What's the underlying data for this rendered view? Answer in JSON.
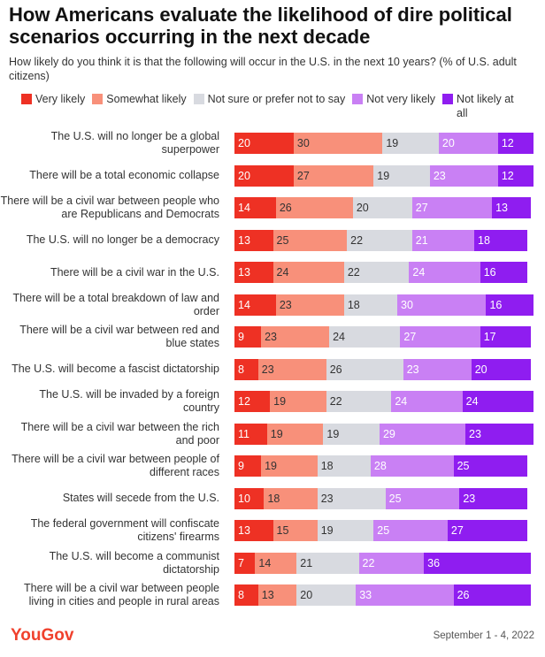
{
  "chart_data": {
    "type": "stacked-bar-horizontal",
    "title": "How Americans evaluate the likelihood of dire political scenarios occurring in the next decade",
    "subtitle": "How likely do you think it is that the following will occur in the U.S. in the next 10 years? (% of U.S. adult citizens)",
    "source": "YouGov",
    "date": "September 1 - 4, 2022",
    "categories": [
      "The U.S. will no longer be a global superpower",
      "There will be a total economic collapse",
      "There will be a civil war between people who are Republicans and Democrats",
      "The U.S. will no longer be a democracy",
      "There will be a civil war in the U.S.",
      "There will be a total breakdown of law and order",
      "There will be a civil war between red and blue states",
      "The U.S. will become a fascist dictatorship",
      "The U.S. will be invaded by a foreign country",
      "There will be a civil war between the rich and poor",
      "There will be a civil war between people of different races",
      "States will secede from the U.S.",
      "The federal government will confiscate citizens' firearms",
      "The U.S. will become a communist dictatorship",
      "There will be a civil war between people living in cities and people in rural areas"
    ],
    "series": [
      {
        "name": "Very likely",
        "color": "#ee3124",
        "text_color": "#ffffff",
        "values": [
          20,
          20,
          14,
          13,
          13,
          14,
          9,
          8,
          12,
          11,
          9,
          10,
          13,
          7,
          8
        ]
      },
      {
        "name": "Somewhat likely",
        "color": "#f8907a",
        "text_color": "#333333",
        "values": [
          30,
          27,
          26,
          25,
          24,
          23,
          23,
          23,
          19,
          19,
          19,
          18,
          15,
          14,
          13
        ]
      },
      {
        "name": "Not sure or prefer not to say",
        "color": "#d8dae0",
        "text_color": "#333333",
        "values": [
          19,
          19,
          20,
          22,
          22,
          18,
          24,
          26,
          22,
          19,
          18,
          23,
          19,
          21,
          20
        ]
      },
      {
        "name": "Not very likely",
        "color": "#c980f4",
        "text_color": "#ffffff",
        "values": [
          20,
          23,
          27,
          21,
          24,
          30,
          27,
          23,
          24,
          29,
          28,
          25,
          25,
          22,
          33
        ]
      },
      {
        "name": "Not likely at all",
        "color": "#8f1df0",
        "text_color": "#ffffff",
        "values": [
          12,
          12,
          13,
          18,
          16,
          16,
          17,
          20,
          24,
          23,
          25,
          23,
          27,
          36,
          26
        ]
      }
    ]
  }
}
